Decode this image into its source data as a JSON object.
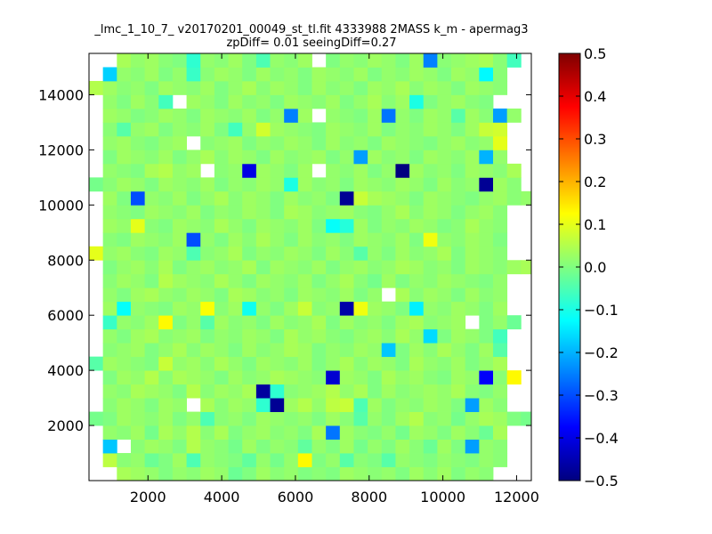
{
  "chart_data": {
    "type": "heatmap",
    "title_line1": "_lmc_1_10_7_ v20170201_00049_st_tl.fit 4333988 2MASS k_m - apermag3",
    "title_line2": "zpDiff= 0.01 seeingDiff=0.27",
    "xlabel": "",
    "ylabel": "",
    "xlim": [
      400,
      12400
    ],
    "ylim": [
      0,
      15500
    ],
    "x_ticks": [
      2000,
      4000,
      6000,
      8000,
      10000,
      12000
    ],
    "y_ticks": [
      2000,
      4000,
      6000,
      8000,
      10000,
      12000,
      14000
    ],
    "x_tick_labels": [
      "2000",
      "4000",
      "6000",
      "8000",
      "10000",
      "12000"
    ],
    "y_tick_labels": [
      "2000",
      "4000",
      "6000",
      "8000",
      "10000",
      "12000",
      "14000"
    ],
    "colormap": "jet",
    "colorbar": {
      "vmin": -0.5,
      "vmax": 0.5,
      "ticks": [
        0.5,
        0.4,
        0.3,
        0.2,
        0.1,
        0.0,
        -0.1,
        -0.2,
        -0.3,
        -0.4,
        -0.5
      ],
      "tick_labels": [
        "0.5",
        "0.4",
        "0.3",
        "0.2",
        "0.1",
        "0.0",
        "−0.1",
        "−0.2",
        "−0.3",
        "−0.4",
        "−0.5"
      ]
    },
    "grid": false,
    "cells": {
      "x0": 400,
      "y0": 0,
      "cell_w": 378,
      "cell_h": 500,
      "cols": 32,
      "rows": 31,
      "note_values": "row 0 is bottom (y 0-500); values in colorbar units",
      "value_rows": [
        [
          null,
          null,
          0.04,
          0.03,
          0.02,
          0.0,
          0.02,
          0.01,
          0.03,
          0.02,
          -0.02,
          0.0,
          0.03,
          0.01,
          0.02,
          0.0,
          0.01,
          0.0,
          0.03,
          0.02,
          0.01,
          0.02,
          0.0,
          0.03,
          0.01,
          0.03,
          0.0,
          0.02,
          0.01,
          null,
          null,
          null
        ],
        [
          null,
          0.06,
          0.01,
          0.02,
          -0.02,
          0.0,
          0.03,
          -0.05,
          0.02,
          0.01,
          0.0,
          -0.03,
          0.02,
          -0.01,
          0.02,
          0.13,
          0.0,
          0.02,
          -0.04,
          0.01,
          0.0,
          -0.04,
          0.02,
          0.01,
          0.0,
          0.02,
          0.01,
          0.0,
          0.02,
          0.01,
          null,
          null
        ],
        [
          null,
          -0.18,
          null,
          0.01,
          0.03,
          0.02,
          0.0,
          0.05,
          0.02,
          0.01,
          -0.01,
          0.03,
          0.0,
          0.02,
          0.01,
          -0.03,
          0.02,
          0.0,
          0.03,
          -0.01,
          0.02,
          0.0,
          0.03,
          0.01,
          -0.02,
          0.03,
          0.0,
          -0.22,
          0.02,
          0.01,
          null,
          null
        ],
        [
          null,
          0.02,
          0.01,
          0.03,
          -0.01,
          0.04,
          0.02,
          0.05,
          0.01,
          0.04,
          0.0,
          0.02,
          0.03,
          0.01,
          0.02,
          0.0,
          0.04,
          -0.26,
          0.03,
          0.01,
          0.0,
          0.02,
          -0.01,
          0.03,
          0.02,
          0.0,
          0.03,
          0.01,
          -0.02,
          0.04,
          null,
          null
        ],
        [
          -0.01,
          0.0,
          0.03,
          0.02,
          0.01,
          0.03,
          0.0,
          0.02,
          -0.05,
          0.01,
          0.02,
          0.0,
          0.03,
          0.02,
          0.01,
          0.02,
          0.0,
          0.03,
          0.01,
          -0.04,
          0.02,
          0.0,
          0.03,
          0.05,
          0.01,
          0.02,
          -0.01,
          0.02,
          0.04,
          0.03,
          0.0,
          -0.01
        ],
        [
          null,
          0.01,
          0.03,
          0.02,
          0.0,
          0.03,
          0.02,
          null,
          0.04,
          0.01,
          0.03,
          0.02,
          -0.08,
          -0.48,
          0.03,
          0.05,
          0.02,
          0.06,
          0.07,
          -0.05,
          0.03,
          0.0,
          0.02,
          0.01,
          0.03,
          0.02,
          0.0,
          -0.22,
          0.03,
          0.01,
          null,
          null
        ],
        [
          null,
          0.02,
          0.01,
          0.04,
          0.03,
          0.02,
          0.0,
          0.05,
          0.01,
          0.03,
          0.02,
          0.04,
          -0.47,
          -0.08,
          0.01,
          0.02,
          0.03,
          0.05,
          0.02,
          0.04,
          0.0,
          0.03,
          0.01,
          0.02,
          0.03,
          0.02,
          0.04,
          0.01,
          0.0,
          0.02,
          null,
          null
        ],
        [
          null,
          0.0,
          0.03,
          0.02,
          0.05,
          0.01,
          0.04,
          0.03,
          0.02,
          0.0,
          0.03,
          0.01,
          0.02,
          0.04,
          0.03,
          0.02,
          0.01,
          -0.42,
          0.03,
          0.02,
          0.0,
          0.04,
          0.02,
          0.03,
          0.01,
          0.0,
          0.03,
          0.02,
          -0.38,
          0.01,
          0.13,
          null
        ],
        [
          -0.04,
          0.03,
          0.02,
          0.01,
          0.0,
          0.07,
          0.02,
          0.03,
          0.01,
          0.04,
          0.02,
          0.0,
          0.03,
          0.02,
          0.01,
          0.03,
          0.0,
          0.02,
          0.04,
          0.01,
          0.03,
          0.02,
          0.0,
          0.04,
          0.02,
          0.01,
          0.03,
          0.0,
          0.02,
          0.04,
          null,
          null
        ],
        [
          null,
          0.01,
          0.02,
          0.03,
          0.0,
          0.02,
          0.04,
          0.01,
          0.03,
          0.02,
          0.0,
          0.03,
          0.01,
          0.02,
          0.04,
          0.03,
          0.0,
          0.02,
          0.01,
          0.03,
          0.02,
          -0.18,
          0.0,
          0.03,
          0.01,
          0.04,
          0.02,
          0.0,
          0.03,
          -0.04,
          null,
          null
        ],
        [
          null,
          0.02,
          0.0,
          0.03,
          0.04,
          0.01,
          0.02,
          0.03,
          0.0,
          0.02,
          0.01,
          0.03,
          0.02,
          0.0,
          0.04,
          0.02,
          0.03,
          0.01,
          0.0,
          0.02,
          0.03,
          0.01,
          0.04,
          0.02,
          -0.16,
          0.0,
          0.03,
          0.02,
          0.0,
          -0.06,
          null,
          null
        ],
        [
          null,
          -0.07,
          0.02,
          0.01,
          0.03,
          0.13,
          0.0,
          0.02,
          -0.04,
          0.03,
          0.01,
          0.02,
          0.0,
          0.03,
          0.01,
          0.02,
          0.04,
          0.0,
          0.03,
          0.01,
          0.02,
          0.0,
          0.03,
          0.04,
          0.01,
          0.02,
          0.03,
          null,
          0.0,
          0.02,
          -0.02,
          null
        ],
        [
          null,
          0.03,
          -0.12,
          0.02,
          0.01,
          0.0,
          0.03,
          0.02,
          0.12,
          0.01,
          0.03,
          -0.11,
          0.02,
          0.0,
          0.03,
          0.07,
          0.01,
          0.02,
          -0.46,
          0.11,
          0.03,
          0.02,
          0.0,
          -0.14,
          0.02,
          0.01,
          0.03,
          0.02,
          0.0,
          0.03,
          null,
          null
        ],
        [
          null,
          0.02,
          0.0,
          0.03,
          0.04,
          0.02,
          0.01,
          0.03,
          0.02,
          0.0,
          0.04,
          0.03,
          0.01,
          0.02,
          0.0,
          0.03,
          0.02,
          0.01,
          0.03,
          0.0,
          0.02,
          null,
          0.04,
          0.01,
          0.03,
          0.02,
          0.0,
          0.03,
          0.01,
          0.02,
          null,
          null
        ],
        [
          null,
          0.01,
          0.03,
          0.02,
          0.0,
          0.05,
          0.03,
          0.02,
          0.01,
          0.04,
          0.02,
          0.0,
          0.03,
          0.02,
          0.01,
          0.03,
          0.0,
          0.02,
          0.04,
          0.01,
          -0.01,
          0.03,
          0.0,
          0.02,
          0.01,
          0.03,
          0.02,
          0.01,
          0.0,
          0.02,
          null,
          null
        ],
        [
          null,
          0.0,
          0.02,
          0.03,
          0.01,
          0.04,
          0.0,
          0.02,
          0.03,
          0.01,
          0.02,
          0.04,
          0.0,
          0.03,
          0.02,
          0.01,
          0.03,
          0.0,
          0.02,
          0.03,
          0.01,
          0.02,
          0.04,
          0.03,
          0.01,
          0.02,
          0.0,
          0.03,
          0.02,
          0.01,
          0.03,
          0.04
        ],
        [
          0.1,
          0.02,
          0.03,
          0.01,
          0.0,
          0.03,
          0.02,
          -0.05,
          0.01,
          0.02,
          0.04,
          0.0,
          0.02,
          0.01,
          0.03,
          0.02,
          0.0,
          0.03,
          0.01,
          -0.04,
          0.02,
          0.0,
          0.03,
          0.01,
          0.02,
          0.04,
          0.0,
          0.03,
          0.02,
          0.01,
          null,
          null
        ],
        [
          null,
          0.01,
          0.0,
          0.03,
          0.02,
          0.01,
          0.03,
          -0.3,
          0.02,
          0.0,
          0.03,
          0.01,
          0.04,
          0.02,
          0.0,
          0.03,
          0.01,
          0.02,
          0.0,
          0.03,
          0.02,
          0.01,
          0.03,
          0.0,
          0.11,
          0.02,
          0.01,
          0.03,
          0.02,
          0.0,
          null,
          null
        ],
        [
          null,
          0.03,
          0.02,
          0.1,
          0.01,
          0.0,
          0.03,
          0.02,
          0.01,
          0.04,
          0.02,
          0.0,
          0.03,
          0.02,
          0.01,
          0.03,
          0.0,
          -0.12,
          -0.09,
          0.03,
          0.0,
          0.02,
          0.01,
          0.03,
          0.02,
          0.0,
          0.01,
          0.04,
          0.02,
          0.01,
          null,
          null
        ],
        [
          null,
          0.02,
          0.01,
          0.0,
          0.03,
          0.02,
          0.01,
          0.03,
          0.0,
          0.02,
          0.01,
          0.03,
          0.02,
          0.0,
          0.04,
          0.03,
          0.01,
          0.02,
          0.03,
          0.01,
          0.0,
          0.02,
          0.04,
          0.01,
          0.03,
          0.02,
          0.0,
          0.02,
          0.03,
          0.01,
          null,
          null
        ],
        [
          null,
          0.03,
          0.0,
          -0.3,
          0.02,
          0.01,
          0.03,
          0.0,
          0.02,
          0.04,
          0.01,
          0.03,
          0.02,
          0.0,
          0.03,
          0.01,
          0.02,
          0.0,
          -0.48,
          0.07,
          0.04,
          0.03,
          0.02,
          0.0,
          0.03,
          0.02,
          0.01,
          0.0,
          0.02,
          0.03,
          0.01,
          0.02
        ],
        [
          -0.01,
          0.01,
          0.03,
          0.02,
          0.0,
          0.03,
          0.02,
          0.01,
          0.03,
          0.0,
          0.02,
          0.01,
          0.03,
          0.02,
          -0.1,
          0.03,
          0.01,
          0.02,
          0.0,
          0.03,
          0.02,
          0.01,
          0.03,
          0.02,
          0.0,
          0.03,
          0.01,
          0.02,
          -0.48,
          0.03,
          0.01,
          null
        ],
        [
          null,
          0.02,
          0.01,
          0.0,
          0.04,
          0.05,
          0.02,
          0.03,
          null,
          0.01,
          0.02,
          -0.4,
          0.03,
          0.02,
          0.0,
          0.03,
          null,
          0.02,
          0.01,
          0.03,
          0.0,
          0.02,
          -0.5,
          0.03,
          0.01,
          0.02,
          0.0,
          0.03,
          0.02,
          0.01,
          0.04,
          null
        ],
        [
          null,
          0.0,
          0.03,
          0.02,
          0.01,
          0.03,
          0.0,
          0.02,
          0.04,
          0.01,
          0.03,
          0.02,
          0.0,
          0.03,
          0.01,
          0.02,
          0.03,
          0.0,
          0.02,
          -0.22,
          0.03,
          0.01,
          0.02,
          0.0,
          0.03,
          0.02,
          0.01,
          0.03,
          -0.2,
          0.02,
          null,
          null
        ],
        [
          null,
          0.02,
          0.03,
          0.01,
          0.0,
          0.02,
          0.03,
          null,
          0.01,
          0.02,
          0.03,
          0.0,
          0.02,
          0.01,
          0.03,
          0.02,
          0.0,
          0.03,
          0.01,
          0.02,
          0.0,
          0.03,
          0.02,
          0.01,
          0.0,
          0.02,
          0.03,
          0.01,
          0.02,
          0.1,
          null,
          null
        ],
        [
          null,
          0.01,
          -0.04,
          0.02,
          0.03,
          0.0,
          0.02,
          0.01,
          0.03,
          0.0,
          -0.06,
          0.02,
          0.08,
          0.03,
          0.02,
          0.01,
          0.0,
          0.03,
          0.02,
          0.01,
          0.03,
          0.0,
          0.02,
          0.01,
          0.03,
          0.02,
          0.0,
          0.03,
          0.07,
          0.08,
          null,
          null
        ],
        [
          null,
          0.03,
          0.02,
          0.0,
          0.01,
          0.03,
          0.02,
          0.0,
          0.03,
          0.02,
          0.01,
          0.03,
          0.0,
          0.02,
          -0.25,
          0.03,
          null,
          0.02,
          0.01,
          0.0,
          0.03,
          -0.26,
          0.02,
          0.0,
          0.03,
          0.02,
          -0.04,
          0.03,
          0.01,
          -0.22,
          0.02,
          null
        ],
        [
          null,
          0.02,
          0.0,
          0.03,
          0.01,
          -0.06,
          null,
          0.03,
          0.02,
          0.0,
          0.03,
          0.01,
          0.02,
          0.0,
          0.03,
          0.02,
          0.01,
          0.03,
          0.0,
          0.02,
          0.04,
          0.01,
          0.03,
          -0.1,
          0.0,
          0.02,
          0.03,
          0.01,
          0.0,
          null,
          null,
          null
        ],
        [
          0.05,
          0.03,
          0.01,
          0.02,
          0.0,
          0.03,
          0.02,
          0.01,
          0.03,
          0.0,
          0.02,
          0.04,
          0.01,
          0.03,
          0.02,
          0.0,
          0.03,
          0.01,
          0.02,
          0.0,
          0.03,
          0.02,
          0.04,
          0.01,
          0.03,
          0.02,
          0.0,
          0.03,
          0.02,
          0.01,
          null,
          null
        ],
        [
          null,
          -0.17,
          0.02,
          0.01,
          0.03,
          0.0,
          0.02,
          -0.07,
          0.01,
          0.03,
          0.02,
          0.0,
          0.03,
          0.01,
          0.02,
          0.0,
          0.03,
          0.02,
          0.01,
          0.03,
          0.0,
          0.02,
          0.01,
          0.03,
          0.02,
          0.0,
          0.03,
          0.02,
          -0.13,
          0.01,
          null,
          null
        ],
        [
          null,
          null,
          0.04,
          0.02,
          0.03,
          0.01,
          0.0,
          -0.08,
          0.02,
          0.01,
          0.03,
          0.0,
          -0.05,
          0.02,
          0.01,
          0.03,
          null,
          0.0,
          0.02,
          0.01,
          0.03,
          0.02,
          0.0,
          0.03,
          -0.25,
          0.01,
          0.02,
          0.03,
          0.04,
          0.01,
          -0.06,
          null
        ]
      ]
    }
  }
}
